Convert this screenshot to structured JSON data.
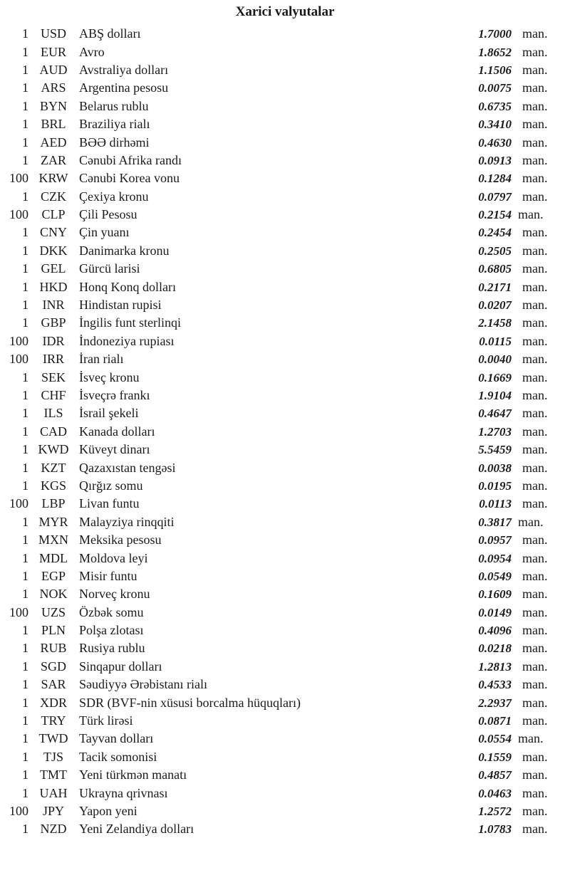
{
  "title": "Xarici valyutalar",
  "rows": [
    {
      "qty": "1",
      "code": "USD",
      "name": "ABŞ dolları",
      "value": "1.7000",
      "unit": "man."
    },
    {
      "qty": "1",
      "code": "EUR",
      "name": "Avro",
      "value": "1.8652",
      "unit": "man."
    },
    {
      "qty": "1",
      "code": "AUD",
      "name": "Avstraliya dolları",
      "value": "1.1506",
      "unit": "man."
    },
    {
      "qty": "1",
      "code": "ARS",
      "name": "Argentina pesosu",
      "value": "0.0075",
      "unit": "man."
    },
    {
      "qty": "1",
      "code": "BYN",
      "name": "Belarus rublu",
      "value": "0.6735",
      "unit": "man."
    },
    {
      "qty": "1",
      "code": "BRL",
      "name": "Braziliya rialı",
      "value": "0.3410",
      "unit": "man."
    },
    {
      "qty": "1",
      "code": "AED",
      "name": "BƏƏ dirhəmi",
      "value": "0.4630",
      "unit": "man."
    },
    {
      "qty": "1",
      "code": "ZAR",
      "name": "Cənubi Afrika randı",
      "value": "0.0913",
      "unit": "man."
    },
    {
      "qty": "100",
      "code": "KRW",
      "name": "Cənubi Korea vonu",
      "value": "0.1284",
      "unit": "man."
    },
    {
      "qty": "1",
      "code": "CZK",
      "name": "Çexiya kronu",
      "value": "0.0797",
      "unit": "man."
    },
    {
      "qty": "100",
      "code": "CLP",
      "name": "Çili Pesosu",
      "value": "0.2154",
      "unit": "man.",
      "tight": true
    },
    {
      "qty": "1",
      "code": "CNY",
      "name": "Çin yuanı",
      "value": "0.2454",
      "unit": "man."
    },
    {
      "qty": "1",
      "code": "DKK",
      "name": "Danimarka kronu",
      "value": "0.2505",
      "unit": "man."
    },
    {
      "qty": "1",
      "code": "GEL",
      "name": "Gürcü larisi",
      "value": "0.6805",
      "unit": "man."
    },
    {
      "qty": "1",
      "code": "HKD",
      "name": "Honq Konq dolları",
      "value": "0.2171",
      "unit": "man."
    },
    {
      "qty": "1",
      "code": "INR",
      "name": "Hindistan rupisi",
      "value": "0.0207",
      "unit": "man."
    },
    {
      "qty": "1",
      "code": "GBP",
      "name": "İngilis funt sterlinqi",
      "value": "2.1458",
      "unit": "man."
    },
    {
      "qty": "100",
      "code": "IDR",
      "name": "İndoneziya rupiası",
      "value": "0.0115",
      "unit": "man."
    },
    {
      "qty": "100",
      "code": "IRR",
      "name": "İran rialı",
      "value": "0.0040",
      "unit": "man."
    },
    {
      "qty": "1",
      "code": "SEK",
      "name": "İsveç kronu",
      "value": "0.1669",
      "unit": "man."
    },
    {
      "qty": "1",
      "code": "CHF",
      "name": "İsveçrə frankı",
      "value": "1.9104",
      "unit": "man."
    },
    {
      "qty": "1",
      "code": "ILS",
      "name": "İsrail şekeli",
      "value": "0.4647",
      "unit": "man."
    },
    {
      "qty": "1",
      "code": "CAD",
      "name": "Kanada dolları",
      "value": "1.2703",
      "unit": "man."
    },
    {
      "qty": "1",
      "code": "KWD",
      "name": "Küveyt dinarı",
      "value": "5.5459",
      "unit": "man."
    },
    {
      "qty": "1",
      "code": "KZT",
      "name": "Qazaxıstan tengəsi",
      "value": "0.0038",
      "unit": "man."
    },
    {
      "qty": "1",
      "code": "KGS",
      "name": "Qırğız somu",
      "value": "0.0195",
      "unit": "man."
    },
    {
      "qty": "100",
      "code": "LBP",
      "name": "Livan funtu",
      "value": "0.0113",
      "unit": "man."
    },
    {
      "qty": "1",
      "code": "MYR",
      "name": "Malayziya rinqqiti",
      "value": "0.3817",
      "unit": "man.",
      "tight": true
    },
    {
      "qty": "1",
      "code": "MXN",
      "name": "Meksika pesosu",
      "value": "0.0957",
      "unit": "man."
    },
    {
      "qty": "1",
      "code": "MDL",
      "name": "Moldova leyi",
      "value": "0.0954",
      "unit": "man."
    },
    {
      "qty": "1",
      "code": "EGP",
      "name": "Misir funtu",
      "value": "0.0549",
      "unit": "man."
    },
    {
      "qty": "1",
      "code": "NOK",
      "name": "Norveç kronu",
      "value": "0.1609",
      "unit": "man."
    },
    {
      "qty": "100",
      "code": "UZS",
      "name": "Özbək somu",
      "value": "0.0149",
      "unit": "man."
    },
    {
      "qty": "1",
      "code": "PLN",
      "name": "Polşa zlotası",
      "value": "0.4096",
      "unit": "man."
    },
    {
      "qty": "1",
      "code": "RUB",
      "name": "Rusiya rublu",
      "value": "0.0218",
      "unit": "man."
    },
    {
      "qty": "1",
      "code": "SGD",
      "name": "Sinqapur dolları",
      "value": "1.2813",
      "unit": "man."
    },
    {
      "qty": "1",
      "code": "SAR",
      "name": "Səudiyyə Ərəbistanı rialı",
      "value": "0.4533",
      "unit": "man."
    },
    {
      "qty": "1",
      "code": "XDR",
      "name": "SDR (BVF-nin xüsusi borcalma hüquqları)",
      "value": "2.2937",
      "unit": "man."
    },
    {
      "qty": "1",
      "code": "TRY",
      "name": "Türk lirəsi",
      "value": "0.0871",
      "unit": "man."
    },
    {
      "qty": "1",
      "code": "TWD",
      "name": "Tayvan dolları",
      "value": "0.0554",
      "unit": "man.",
      "tight": true
    },
    {
      "qty": "1",
      "code": "TJS",
      "name": "Tacik somonisi",
      "value": "0.1559",
      "unit": "man."
    },
    {
      "qty": "1",
      "code": "TMT",
      "name": "Yeni türkmən manatı",
      "value": "0.4857",
      "unit": "man."
    },
    {
      "qty": "1",
      "code": "UAH",
      "name": "Ukrayna qrivnası",
      "value": "0.0463",
      "unit": "man."
    },
    {
      "qty": "100",
      "code": "JPY",
      "name": "Yapon yeni",
      "value": "1.2572",
      "unit": "man."
    },
    {
      "qty": "1",
      "code": "NZD",
      "name": "Yeni Zelandiya dolları",
      "value": "1.0783",
      "unit": "man."
    }
  ]
}
